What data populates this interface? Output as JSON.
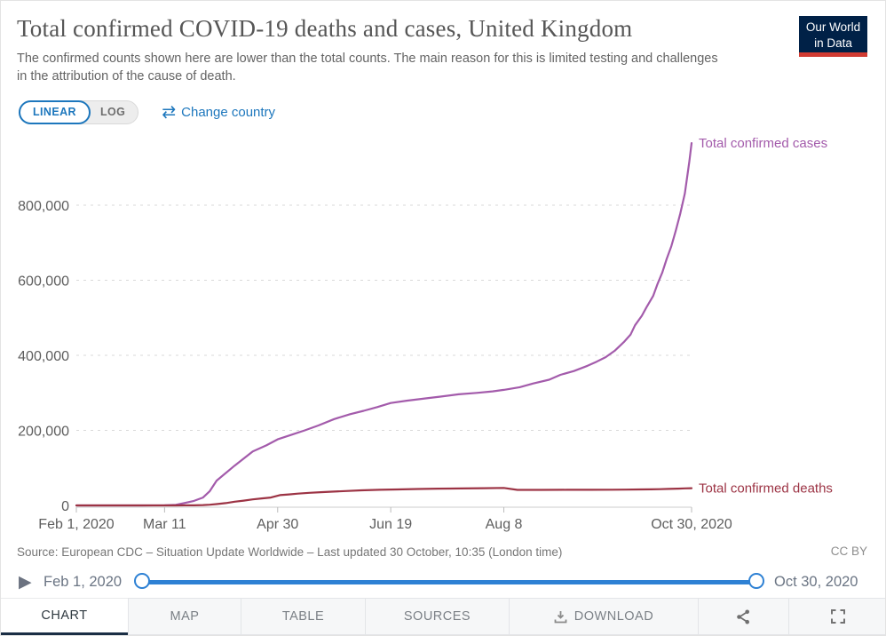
{
  "header": {
    "title": "Total confirmed COVID-19 deaths and cases, United Kingdom",
    "subtitle": "The confirmed counts shown here are lower than the total counts. The main reason for this is limited testing and challenges in the attribution of the cause of death.",
    "logo": {
      "line1": "Our World",
      "line2": "in Data",
      "bg_color": "#002147",
      "accent_color": "#d13b32"
    }
  },
  "controls": {
    "linear_label": "LINEAR",
    "log_label": "LOG",
    "swap_icon": "⇄",
    "change_country_label": "Change country",
    "accent_color": "#1d77bd"
  },
  "chart_data": {
    "type": "line",
    "title": "Total confirmed COVID-19 deaths and cases, United Kingdom",
    "x_range": [
      "2020-02-01",
      "2020-10-30"
    ],
    "ylim": [
      0,
      800000
    ],
    "grid": "dashed-horizontal",
    "legend_position": "end-of-line-labels",
    "y_ticks": [
      0,
      200000,
      400000,
      600000,
      800000
    ],
    "x_ticks": [
      {
        "date": "2020-02-01",
        "label": "Feb 1, 2020"
      },
      {
        "date": "2020-03-11",
        "label": "Mar 11"
      },
      {
        "date": "2020-04-30",
        "label": "Apr 30"
      },
      {
        "date": "2020-06-19",
        "label": "Jun 19"
      },
      {
        "date": "2020-08-08",
        "label": "Aug 8"
      },
      {
        "date": "2020-10-30",
        "label": "Oct 30, 2020"
      }
    ],
    "series": [
      {
        "name": "Total confirmed cases",
        "color": "#a35bab",
        "points": [
          [
            "2020-02-01",
            2
          ],
          [
            "2020-02-20",
            10
          ],
          [
            "2020-03-01",
            36
          ],
          [
            "2020-03-11",
            456
          ],
          [
            "2020-03-16",
            1600
          ],
          [
            "2020-03-20",
            6700
          ],
          [
            "2020-03-24",
            12000
          ],
          [
            "2020-03-28",
            21000
          ],
          [
            "2020-03-31",
            38000
          ],
          [
            "2020-04-03",
            66000
          ],
          [
            "2020-04-11",
            106000
          ],
          [
            "2020-04-19",
            144000
          ],
          [
            "2020-04-25",
            160000
          ],
          [
            "2020-04-30",
            176000
          ],
          [
            "2020-05-06",
            188000
          ],
          [
            "2020-05-12",
            200000
          ],
          [
            "2020-05-18",
            213000
          ],
          [
            "2020-05-25",
            230000
          ],
          [
            "2020-06-01",
            243000
          ],
          [
            "2020-06-07",
            252000
          ],
          [
            "2020-06-13",
            262000
          ],
          [
            "2020-06-19",
            273000
          ],
          [
            "2020-06-26",
            279000
          ],
          [
            "2020-07-04",
            285000
          ],
          [
            "2020-07-11",
            290000
          ],
          [
            "2020-07-19",
            296000
          ],
          [
            "2020-07-27",
            300000
          ],
          [
            "2020-08-03",
            304000
          ],
          [
            "2020-08-08",
            308000
          ],
          [
            "2020-08-15",
            315000
          ],
          [
            "2020-08-21",
            325000
          ],
          [
            "2020-08-28",
            335000
          ],
          [
            "2020-09-02",
            348000
          ],
          [
            "2020-09-08",
            358000
          ],
          [
            "2020-09-14",
            372000
          ],
          [
            "2020-09-18",
            383000
          ],
          [
            "2020-09-22",
            395000
          ],
          [
            "2020-09-26",
            412000
          ],
          [
            "2020-09-30",
            435000
          ],
          [
            "2020-10-03",
            455000
          ],
          [
            "2020-10-05",
            480000
          ],
          [
            "2020-10-08",
            505000
          ],
          [
            "2020-10-10",
            527000
          ],
          [
            "2020-10-13",
            558000
          ],
          [
            "2020-10-15",
            591000
          ],
          [
            "2020-10-17",
            620000
          ],
          [
            "2020-10-19",
            657000
          ],
          [
            "2020-10-21",
            690000
          ],
          [
            "2020-10-23",
            732000
          ],
          [
            "2020-10-25",
            778000
          ],
          [
            "2020-10-27",
            831000
          ],
          [
            "2020-10-28",
            873000
          ],
          [
            "2020-10-29",
            917000
          ],
          [
            "2020-10-30",
            965340
          ]
        ]
      },
      {
        "name": "Total confirmed deaths",
        "color": "#9c3344",
        "points": [
          [
            "2020-02-01",
            0
          ],
          [
            "2020-03-05",
            1
          ],
          [
            "2020-03-11",
            6
          ],
          [
            "2020-03-16",
            55
          ],
          [
            "2020-03-20",
            144
          ],
          [
            "2020-03-24",
            335
          ],
          [
            "2020-03-28",
            1019
          ],
          [
            "2020-03-31",
            1789
          ],
          [
            "2020-04-03",
            3605
          ],
          [
            "2020-04-07",
            6159
          ],
          [
            "2020-04-11",
            9875
          ],
          [
            "2020-04-15",
            12868
          ],
          [
            "2020-04-19",
            16060
          ],
          [
            "2020-04-23",
            18738
          ],
          [
            "2020-04-27",
            21092
          ],
          [
            "2020-05-01",
            27510
          ],
          [
            "2020-05-05",
            29427
          ],
          [
            "2020-05-09",
            31587
          ],
          [
            "2020-05-14",
            33614
          ],
          [
            "2020-05-19",
            35341
          ],
          [
            "2020-05-24",
            36793
          ],
          [
            "2020-05-30",
            38376
          ],
          [
            "2020-06-06",
            40261
          ],
          [
            "2020-06-14",
            41698
          ],
          [
            "2020-06-22",
            42647
          ],
          [
            "2020-07-01",
            43730
          ],
          [
            "2020-07-10",
            44650
          ],
          [
            "2020-07-20",
            45312
          ],
          [
            "2020-07-30",
            45999
          ],
          [
            "2020-08-08",
            46566
          ],
          [
            "2020-08-14",
            41358
          ],
          [
            "2020-08-25",
            41433
          ],
          [
            "2020-09-05",
            41551
          ],
          [
            "2020-09-15",
            41664
          ],
          [
            "2020-09-25",
            41902
          ],
          [
            "2020-10-01",
            42202
          ],
          [
            "2020-10-07",
            42515
          ],
          [
            "2020-10-12",
            42875
          ],
          [
            "2020-10-16",
            43383
          ],
          [
            "2020-10-20",
            43967
          ],
          [
            "2020-10-24",
            44745
          ],
          [
            "2020-10-27",
            45365
          ],
          [
            "2020-10-30",
            45955
          ]
        ]
      }
    ]
  },
  "footer": {
    "source": "Source: European CDC – Situation Update Worldwide – Last updated 30 October, 10:35 (London time)",
    "license": "CC BY"
  },
  "timeline": {
    "play_icon": "▶",
    "start_label": "Feb 1, 2020",
    "end_label": "Oct 30, 2020",
    "track_color": "#2e81d4"
  },
  "tabs": {
    "chart": "CHART",
    "map": "MAP",
    "table": "TABLE",
    "sources": "SOURCES",
    "download": "DOWNLOAD"
  }
}
